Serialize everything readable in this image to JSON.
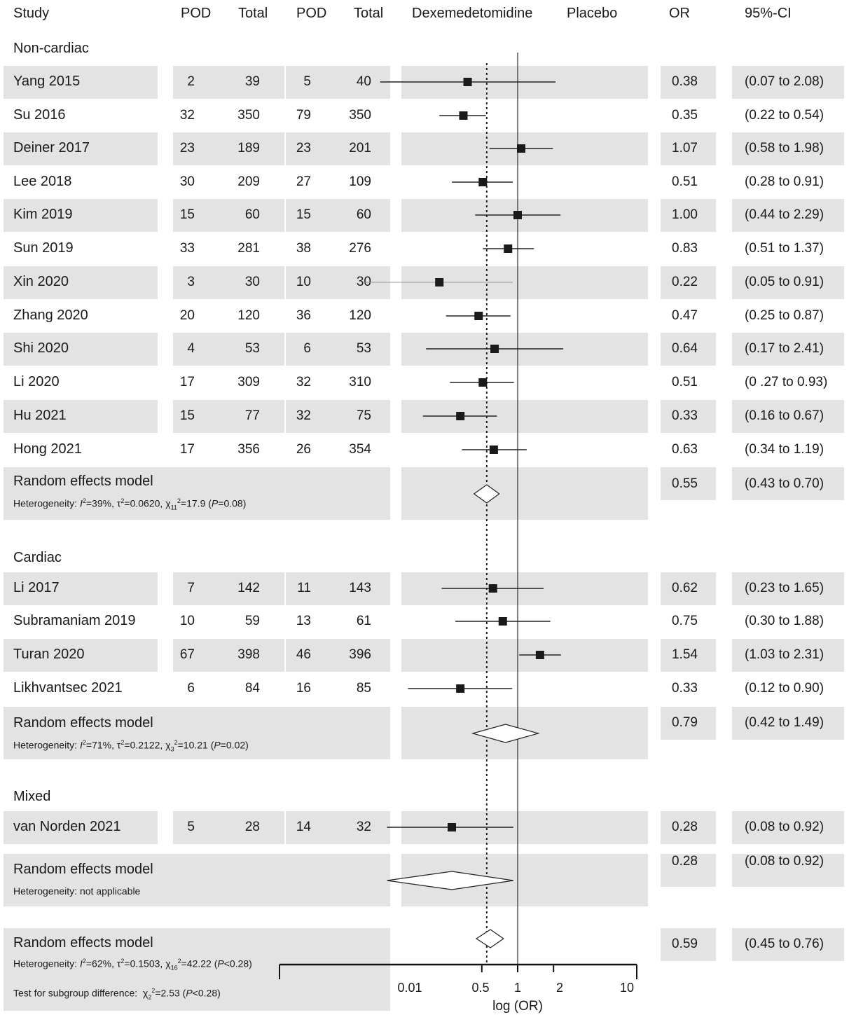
{
  "headers": {
    "study": "Study",
    "pod_dex": "POD",
    "total_dex": "Total",
    "pod_pla": "POD",
    "total_pla": "Total",
    "dex": "Dexemedetomidine",
    "placebo": "Placebo",
    "or": "OR",
    "ci": "95%-CI"
  },
  "groups": [
    {
      "name": "Non-cardiac",
      "pooled": {
        "title": "Random effects model",
        "het_i2": "39%",
        "het_tau2": "0.0620",
        "het_chi_df": "11",
        "het_chi": "17.9",
        "het_p": "0.08",
        "or": "0.55",
        "ci": "(0.43 to 0.70)"
      }
    },
    {
      "name": "Cardiac",
      "pooled": {
        "title": "Random effects model",
        "het_i2": "71%",
        "het_tau2": "0.2122",
        "het_chi_df": "3",
        "het_chi": "10.21",
        "het_p": "0.02",
        "or": "0.79",
        "ci": "(0.42 to 1.49)"
      }
    },
    {
      "name": "Mixed",
      "pooled": {
        "title": "Random effects model",
        "het_text": "Heterogeneity: not applicable",
        "or": "0.28",
        "ci": "(0.08 to 0.92)"
      }
    }
  ],
  "overall": {
    "title": "Random effects model",
    "het_i2": "62%",
    "het_tau2": "0.1503",
    "het_chi_df": "16",
    "het_chi": "42.22",
    "het_p": "<0.28",
    "subgroup_prefix": "Test for subgroup difference:",
    "subgroup_df": "2",
    "subgroup_chi": "2.53",
    "subgroup_p": "<0.28",
    "or": "0.59",
    "ci": "(0.45 to 0.76)"
  },
  "labels": {
    "heterogeneity": "Heterogeneity:",
    "i": "I",
    "tau": "τ",
    "chi": "χ",
    "p": "P"
  },
  "chart_data": {
    "type": "forest",
    "x_scale": "log",
    "xlabel": "log (OR)",
    "xticks": [
      "0.01",
      "0.5",
      "1",
      "2",
      "10"
    ],
    "xtick_values": [
      0.01,
      0.5,
      1,
      2,
      10
    ],
    "reference_line": 1,
    "summary_line": 0.55,
    "studies": [
      {
        "group": 0,
        "study": "Yang 2015",
        "pod_dex": "2",
        "total_dex": "39",
        "pod_pla": "5",
        "total_pla": "40",
        "or": 0.38,
        "lo": 0.07,
        "hi": 2.08,
        "or_text": "0.38",
        "ci_text": "(0.07 to 2.08)"
      },
      {
        "group": 0,
        "study": "Su 2016",
        "pod_dex": "32",
        "total_dex": "350",
        "pod_pla": "79",
        "total_pla": "350",
        "or": 0.35,
        "lo": 0.22,
        "hi": 0.54,
        "or_text": "0.35",
        "ci_text": "(0.22 to 0.54)"
      },
      {
        "group": 0,
        "study": "Deiner 2017",
        "pod_dex": "23",
        "total_dex": "189",
        "pod_pla": "23",
        "total_pla": "201",
        "or": 1.07,
        "lo": 0.58,
        "hi": 1.98,
        "or_text": "1.07",
        "ci_text": "(0.58 to 1.98)"
      },
      {
        "group": 0,
        "study": "Lee 2018",
        "pod_dex": "30",
        "total_dex": "209",
        "pod_pla": "27",
        "total_pla": "109",
        "or": 0.51,
        "lo": 0.28,
        "hi": 0.91,
        "or_text": "0.51",
        "ci_text": "(0.28 to 0.91)"
      },
      {
        "group": 0,
        "study": "Kim 2019",
        "pod_dex": "15",
        "total_dex": "60",
        "pod_pla": "15",
        "total_pla": "60",
        "or": 1.0,
        "lo": 0.44,
        "hi": 2.29,
        "or_text": "1.00",
        "ci_text": "(0.44 to 2.29)"
      },
      {
        "group": 0,
        "study": "Sun 2019",
        "pod_dex": "33",
        "total_dex": "281",
        "pod_pla": "38",
        "total_pla": "276",
        "or": 0.83,
        "lo": 0.51,
        "hi": 1.37,
        "or_text": "0.83",
        "ci_text": "(0.51 to 1.37)"
      },
      {
        "group": 0,
        "study": "Xin 2020",
        "pod_dex": "3",
        "total_dex": "30",
        "pod_pla": "10",
        "total_pla": "30",
        "or": 0.22,
        "lo": 0.05,
        "hi": 0.91,
        "or_text": "0.22",
        "ci_text": "(0.05 to 0.91)"
      },
      {
        "group": 0,
        "study": "Zhang 2020",
        "pod_dex": "20",
        "total_dex": "120",
        "pod_pla": "36",
        "total_pla": "120",
        "or": 0.47,
        "lo": 0.25,
        "hi": 0.87,
        "or_text": "0.47",
        "ci_text": "(0.25 to 0.87)"
      },
      {
        "group": 0,
        "study": "Shi 2020",
        "pod_dex": "4",
        "total_dex": "53",
        "pod_pla": "6",
        "total_pla": "53",
        "or": 0.64,
        "lo": 0.17,
        "hi": 2.41,
        "or_text": "0.64",
        "ci_text": "(0.17 to 2.41)"
      },
      {
        "group": 0,
        "study": "Li 2020",
        "pod_dex": "17",
        "total_dex": "309",
        "pod_pla": "32",
        "total_pla": "310",
        "or": 0.51,
        "lo": 0.27,
        "hi": 0.93,
        "or_text": "0.51",
        "ci_text": "(0 .27 to 0.93)"
      },
      {
        "group": 0,
        "study": "Hu 2021",
        "pod_dex": "15",
        "total_dex": "77",
        "pod_pla": "32",
        "total_pla": "75",
        "or": 0.33,
        "lo": 0.16,
        "hi": 0.67,
        "or_text": "0.33",
        "ci_text": "(0.16 to 0.67)"
      },
      {
        "group": 0,
        "study": "Hong 2021",
        "pod_dex": "17",
        "total_dex": "356",
        "pod_pla": "26",
        "total_pla": "354",
        "or": 0.63,
        "lo": 0.34,
        "hi": 1.19,
        "or_text": "0.63",
        "ci_text": "(0.34 to 1.19)"
      },
      {
        "group": 1,
        "study": "Li 2017",
        "pod_dex": "7",
        "total_dex": "142",
        "pod_pla": "11",
        "total_pla": "143",
        "or": 0.62,
        "lo": 0.23,
        "hi": 1.65,
        "or_text": "0.62",
        "ci_text": "(0.23 to 1.65)"
      },
      {
        "group": 1,
        "study": "Subramaniam 2019",
        "pod_dex": "10",
        "total_dex": "59",
        "pod_pla": "13",
        "total_pla": "61",
        "or": 0.75,
        "lo": 0.3,
        "hi": 1.88,
        "or_text": "0.75",
        "ci_text": "(0.30 to 1.88)"
      },
      {
        "group": 1,
        "study": "Turan 2020",
        "pod_dex": "67",
        "total_dex": "398",
        "pod_pla": "46",
        "total_pla": "396",
        "or": 1.54,
        "lo": 1.03,
        "hi": 2.31,
        "or_text": "1.54",
        "ci_text": "(1.03 to 2.31)"
      },
      {
        "group": 1,
        "study": "Likhvantsec 2021",
        "pod_dex": "6",
        "total_dex": "84",
        "pod_pla": "16",
        "total_pla": "85",
        "or": 0.33,
        "lo": 0.12,
        "hi": 0.9,
        "or_text": "0.33",
        "ci_text": "(0.12 to 0.90)"
      },
      {
        "group": 2,
        "study": "van Norden 2021",
        "pod_dex": "5",
        "total_dex": "28",
        "pod_pla": "14",
        "total_pla": "32",
        "or": 0.28,
        "lo": 0.08,
        "hi": 0.92,
        "or_text": "0.28",
        "ci_text": "(0.08 to 0.92)"
      }
    ],
    "pooled": [
      {
        "group": "Non-cardiac",
        "or": 0.55,
        "lo": 0.43,
        "hi": 0.7
      },
      {
        "group": "Cardiac",
        "or": 0.79,
        "lo": 0.42,
        "hi": 1.49
      },
      {
        "group": "Mixed",
        "or": 0.28,
        "lo": 0.08,
        "hi": 0.92
      },
      {
        "group": "Overall",
        "or": 0.59,
        "lo": 0.45,
        "hi": 0.76
      }
    ]
  }
}
